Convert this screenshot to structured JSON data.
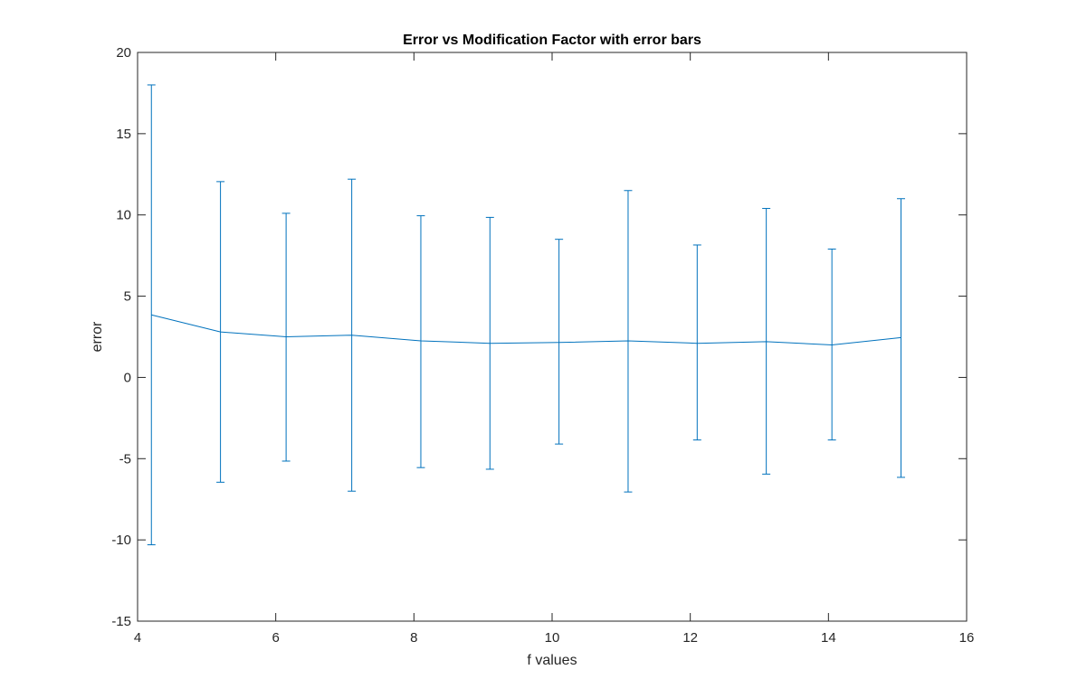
{
  "chart_data": {
    "type": "line",
    "title": "Error vs Modification Factor with error bars",
    "xlabel": "f values",
    "ylabel": "error",
    "xlim": [
      4,
      16
    ],
    "ylim": [
      -15,
      20
    ],
    "xticks": [
      4,
      6,
      8,
      10,
      12,
      14,
      16
    ],
    "yticks": [
      -15,
      -10,
      -5,
      0,
      5,
      10,
      15,
      20
    ],
    "xtick_labels": [
      "4",
      "6",
      "8",
      "10",
      "12",
      "14",
      "16"
    ],
    "ytick_labels": [
      "-15",
      "-10",
      "-5",
      "0",
      "5",
      "10",
      "15",
      "20"
    ],
    "grid": false,
    "color": "#0072BD",
    "series": [
      {
        "x": [
          4.2,
          5.2,
          6.15,
          7.1,
          8.1,
          9.1,
          10.1,
          11.1,
          12.1,
          13.1,
          14.05,
          15.05
        ],
        "y": [
          3.85,
          2.8,
          2.5,
          2.6,
          2.25,
          2.1,
          2.15,
          2.25,
          2.1,
          2.2,
          2.0,
          2.45
        ],
        "error_upper": [
          18.0,
          12.05,
          10.1,
          12.2,
          9.95,
          9.85,
          8.5,
          11.5,
          8.15,
          10.4,
          7.9,
          11.0
        ],
        "error_lower": [
          -10.3,
          -6.45,
          -5.15,
          -7.0,
          -5.55,
          -5.65,
          -4.1,
          -7.05,
          -3.85,
          -5.95,
          -3.85,
          -6.15
        ]
      }
    ]
  }
}
